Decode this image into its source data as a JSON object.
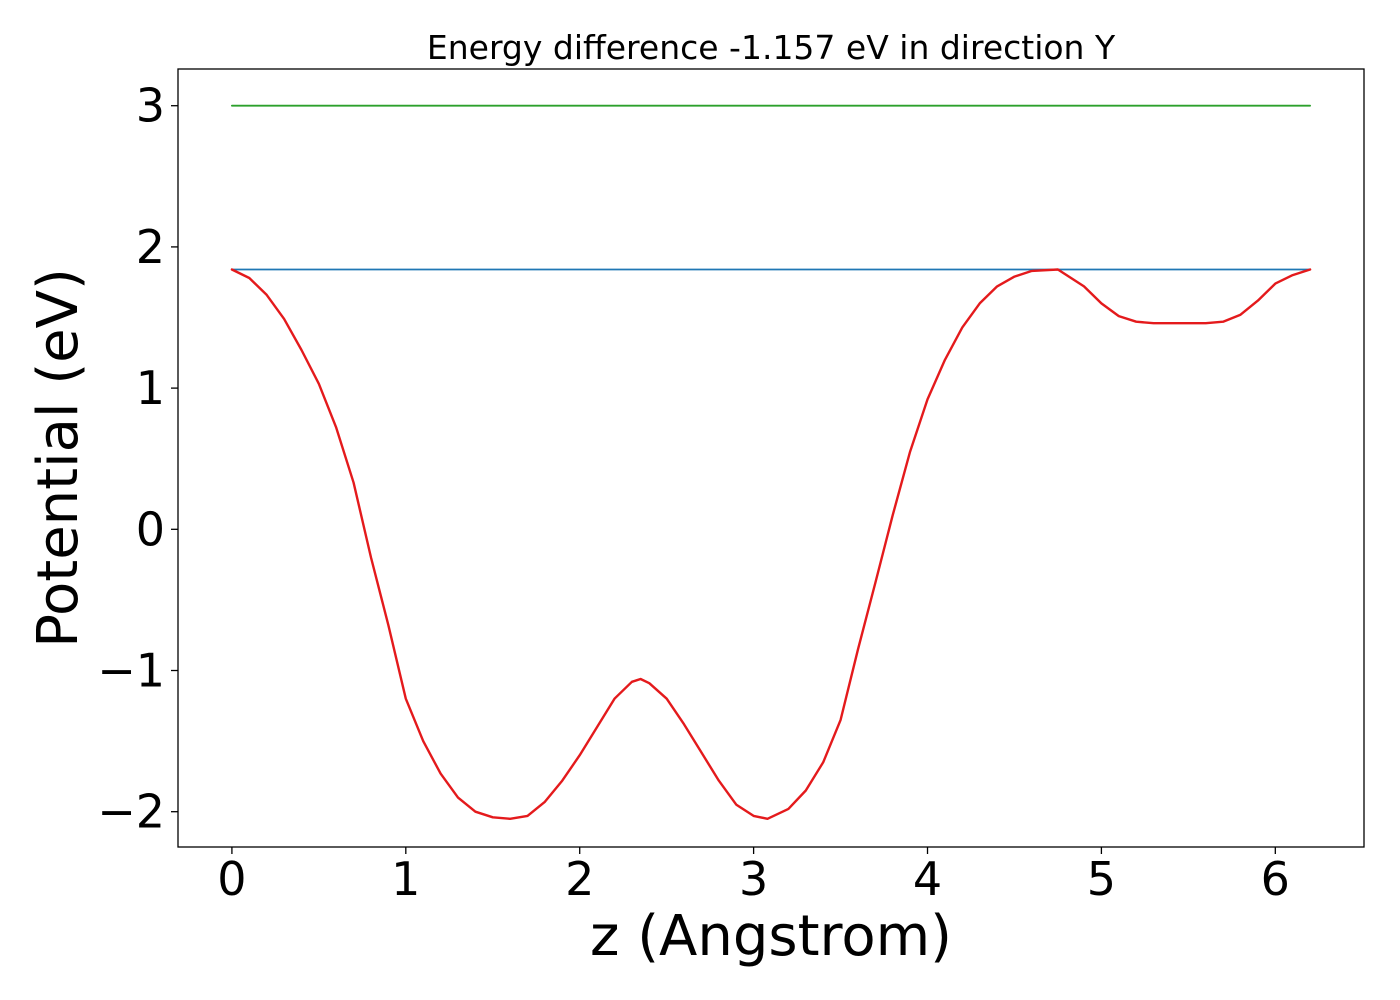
{
  "chart_data": {
    "type": "line",
    "title": "Energy difference -1.157 eV in direction Y",
    "xlabel": "z (Angstrom)",
    "ylabel": "Potential (eV)",
    "xlim": [
      -0.31,
      6.51
    ],
    "ylim": [
      -2.25,
      3.26
    ],
    "xticks": [
      0,
      1,
      2,
      3,
      4,
      5,
      6
    ],
    "xtick_labels": [
      "0",
      "1",
      "2",
      "3",
      "4",
      "5",
      "6"
    ],
    "yticks": [
      -2,
      -1,
      0,
      1,
      2,
      3
    ],
    "ytick_labels": [
      "−2",
      "−1",
      "0",
      "1",
      "2",
      "3"
    ],
    "grid": false,
    "series": [
      {
        "color": "#2ca02c",
        "x": [
          0,
          6.2
        ],
        "y": [
          3.0,
          3.0
        ]
      },
      {
        "color": "#1f77b4",
        "x": [
          0,
          6.2
        ],
        "y": [
          1.84,
          1.84
        ]
      },
      {
        "color": "#e41a1c",
        "x": [
          0,
          0.1,
          0.2,
          0.3,
          0.4,
          0.5,
          0.6,
          0.7,
          0.8,
          0.9,
          1.0,
          1.1,
          1.2,
          1.3,
          1.4,
          1.5,
          1.6,
          1.7,
          1.8,
          1.9,
          2.0,
          2.1,
          2.2,
          2.3,
          2.35,
          2.4,
          2.5,
          2.6,
          2.7,
          2.8,
          2.9,
          3.0,
          3.08,
          3.2,
          3.3,
          3.4,
          3.5,
          3.6,
          3.7,
          3.8,
          3.9,
          4.0,
          4.1,
          4.2,
          4.3,
          4.4,
          4.5,
          4.6,
          4.75,
          4.9,
          5.0,
          5.1,
          5.2,
          5.3,
          5.45,
          5.6,
          5.7,
          5.8,
          5.9,
          6.0,
          6.1,
          6.2
        ],
        "y": [
          1.84,
          1.78,
          1.66,
          1.49,
          1.27,
          1.03,
          0.72,
          0.33,
          -0.2,
          -0.68,
          -1.2,
          -1.5,
          -1.73,
          -1.9,
          -2.0,
          -2.04,
          -2.05,
          -2.03,
          -1.93,
          -1.78,
          -1.6,
          -1.4,
          -1.2,
          -1.08,
          -1.06,
          -1.09,
          -1.2,
          -1.38,
          -1.58,
          -1.78,
          -1.95,
          -2.03,
          -2.05,
          -1.98,
          -1.85,
          -1.65,
          -1.35,
          -0.85,
          -0.38,
          0.1,
          0.55,
          0.92,
          1.2,
          1.43,
          1.6,
          1.72,
          1.79,
          1.83,
          1.84,
          1.72,
          1.6,
          1.51,
          1.47,
          1.46,
          1.46,
          1.46,
          1.47,
          1.52,
          1.62,
          1.74,
          1.8,
          1.84
        ]
      }
    ]
  }
}
